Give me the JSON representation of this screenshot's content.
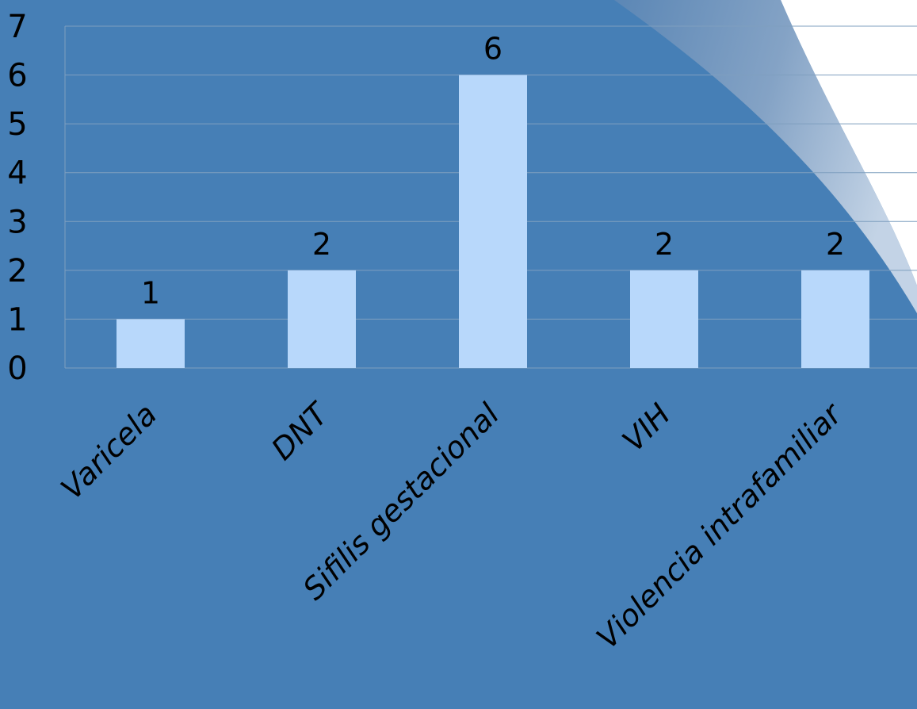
{
  "chart_data": {
    "type": "bar",
    "categories": [
      "Varicela",
      "DNT",
      "Sifilis gestacional",
      "VIH",
      "Violencia intrafamiliar"
    ],
    "values": [
      1,
      2,
      6,
      2,
      2
    ],
    "data_labels": [
      "1",
      "2",
      "6",
      "2",
      "2"
    ],
    "ylim": [
      0,
      7
    ],
    "yticks": [
      "0",
      "1",
      "2",
      "3",
      "4",
      "5",
      "6",
      "7"
    ],
    "grid": true,
    "legend": "none",
    "colors": {
      "background": "#467fb6",
      "bar": "#b8d8fb",
      "grid": "#7f9fbf",
      "text": "#000000",
      "corner_highlight": "#ffffff"
    }
  }
}
